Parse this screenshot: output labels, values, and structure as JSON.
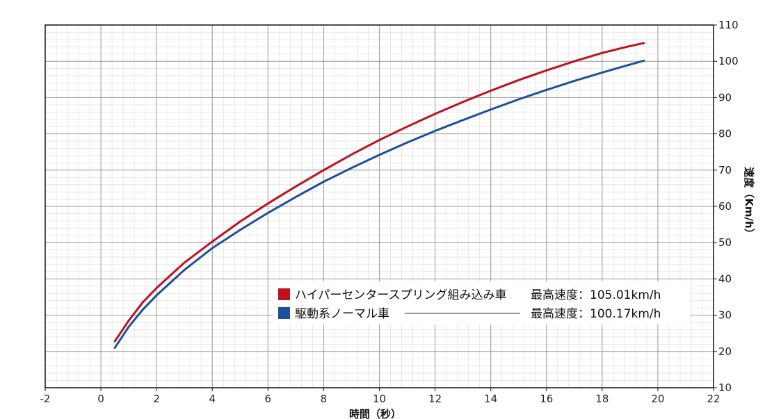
{
  "chart_data": {
    "type": "line",
    "xlabel": "時間（秒）",
    "ylabel": "速度（Km/h）",
    "xlim": [
      -2,
      22
    ],
    "ylim": [
      10,
      110
    ],
    "xticks": [
      -2,
      0,
      2,
      4,
      6,
      8,
      10,
      12,
      14,
      16,
      18,
      20,
      22
    ],
    "yticks": [
      10,
      20,
      30,
      40,
      50,
      60,
      70,
      80,
      90,
      100,
      110
    ],
    "y_axis_side": "right",
    "grid": {
      "major": true,
      "minor": true
    },
    "legend": {
      "placement": "lower-right",
      "items": [
        {
          "label": "ハイパーセンタースプリング組み込み車",
          "note": "最高速度：105.01km/h"
        },
        {
          "label": "駆動系ノーマル車",
          "note": "最高速度：100.17km/h"
        }
      ]
    },
    "series": [
      {
        "name": "ハイパーセンタースプリング組み込み車",
        "color": "#c0111f",
        "x": [
          0.5,
          1,
          1.5,
          2,
          3,
          4,
          5,
          6,
          7,
          8,
          9,
          10,
          11,
          12,
          13,
          14,
          15,
          16,
          17,
          18,
          19,
          19.5
        ],
        "y": [
          22.8,
          28.5,
          33.5,
          37.5,
          44.5,
          50.3,
          55.8,
          60.8,
          65.5,
          70.0,
          74.3,
          78.3,
          82.0,
          85.5,
          88.8,
          91.9,
          94.8,
          97.5,
          100.0,
          102.3,
          104.2,
          105.01
        ]
      },
      {
        "name": "駆動系ノーマル車",
        "color": "#1e4f9c",
        "x": [
          0.5,
          1,
          1.5,
          2,
          3,
          4,
          5,
          6,
          7,
          8,
          9,
          10,
          11,
          12,
          13,
          14,
          15,
          16,
          17,
          18,
          19,
          19.5
        ],
        "y": [
          21.0,
          26.8,
          31.5,
          35.5,
          42.5,
          48.5,
          53.5,
          58.2,
          62.6,
          66.8,
          70.6,
          74.2,
          77.6,
          80.8,
          83.8,
          86.7,
          89.5,
          92.1,
          94.6,
          96.9,
          99.1,
          100.17
        ]
      }
    ]
  }
}
